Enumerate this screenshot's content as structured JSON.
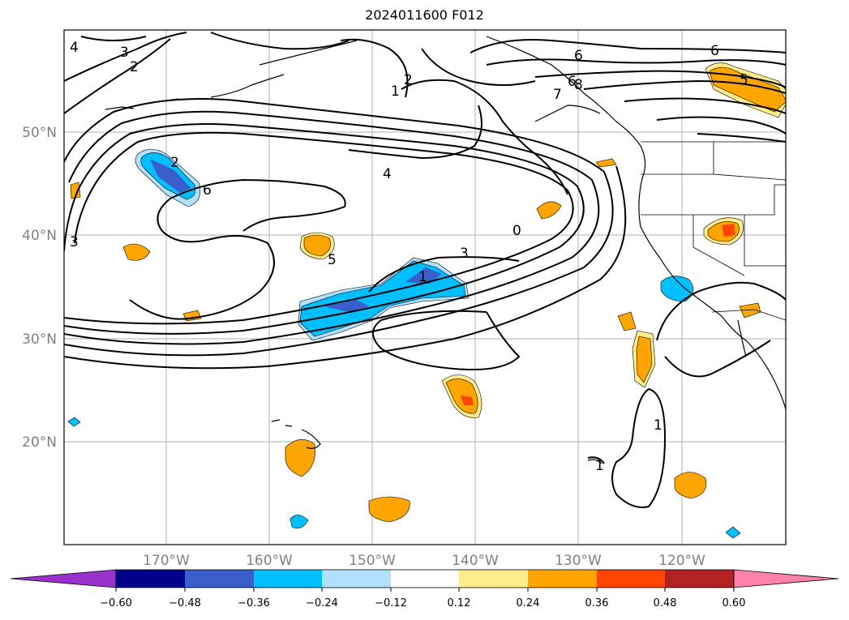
{
  "title": "2024011600 F012",
  "map": {
    "lat_labels": [
      "50°N",
      "40°N",
      "30°N",
      "20°N"
    ],
    "lon_labels": [
      "170°W",
      "160°W",
      "150°W",
      "140°W",
      "130°W",
      "120°W"
    ],
    "contour_labels": [
      "4",
      "3",
      "2",
      "2",
      "1",
      "6",
      "6",
      "8",
      "7",
      "2",
      "6",
      "4",
      "3",
      "5",
      "0",
      "3",
      "1",
      "1",
      "1",
      "5",
      "6"
    ]
  },
  "colorbar": {
    "ticks": [
      "−0.60",
      "−0.48",
      "−0.36",
      "−0.24",
      "−0.12",
      "0.12",
      "0.24",
      "0.36",
      "0.48",
      "0.60"
    ],
    "colors": [
      "#9932cc",
      "#00008b",
      "#3a5fcd",
      "#00bfff",
      "#b0e2ff",
      "#ffffff",
      "#ffec8b",
      "#ffa500",
      "#ff4500",
      "#b22222",
      "#ff82ab"
    ]
  }
}
